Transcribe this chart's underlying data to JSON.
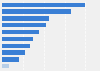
{
  "values": [
    100,
    83,
    56,
    53,
    44,
    37,
    33,
    28,
    20,
    8
  ],
  "bar_color": "#3a7fd5",
  "last_bar_color": "#b8cfe8",
  "background_color": "#f0f0f0",
  "plot_bg_color": "#f0f0f0",
  "grid_color": "#ffffff",
  "xlim": [
    0,
    115
  ]
}
